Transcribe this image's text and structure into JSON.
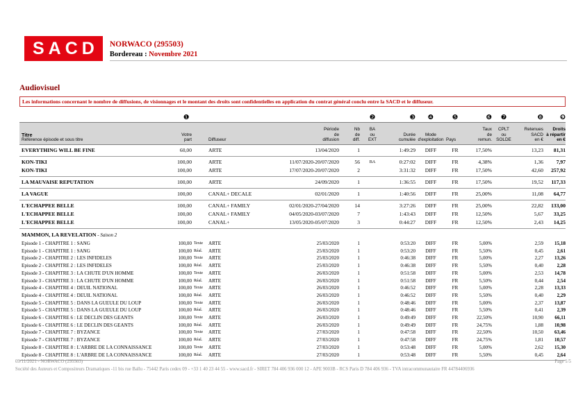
{
  "header": {
    "logo_text": "SACD",
    "client": "NORWACO (295503)",
    "bordereau_label": "Bordereau :",
    "bordereau_value": "Novembre 2021"
  },
  "section_title": "Audiovisuel",
  "notice": "Les informations concernant le nombre de diffusions, de visionnages et le montant des droits sont confidentielles en application du contrat général conclu entre la SACD et le diffuseur.",
  "footer": {
    "left": "09/11/2021 - NORWACO (295503)",
    "page": "Page 1/5",
    "company": "Société des Auteurs et Compositeurs Dramatiques -11 bis rue Ballu - 75442 Paris cedex 09 - +33 1 40 23 44 55 - www.sacd.fr - SIRET 784 406 936 000 12 - APE 9003B - RCS Paris D 784 406 936 - TVA intracommunautaire FR 44784406936"
  },
  "colors": {
    "brand_red": "#e30613",
    "title_red": "#c00000",
    "dark_red": "#8b0000",
    "header_band": "#d6d6d6",
    "line_gray": "#9a9a9a",
    "footer_gray": "#8a8a8a"
  },
  "table": {
    "badges": {
      "partrole": "❶",
      "ba": "❷",
      "duree": "❸",
      "mode": "❹",
      "pays": "❺",
      "taux": "❻",
      "cplt": "❼",
      "retenues": "❽",
      "droits": "❾"
    },
    "badge_order": [
      "titre",
      "partrole",
      "diffuseur",
      "periode",
      "nb",
      "ba",
      "duree",
      "mode",
      "pays",
      "taux",
      "cplt",
      "retenues",
      "droits"
    ],
    "header": {
      "titre_line1": "Titre",
      "titre_line2": "Référence épisode et sous titre",
      "cols": [
        {
          "key": "part",
          "label": "Votre\npart"
        },
        {
          "key": "role",
          "label": ""
        },
        {
          "key": "diffuseur",
          "label": "Diffuseur"
        },
        {
          "key": "periode",
          "label": "Période\nde\ndiffusion"
        },
        {
          "key": "nb",
          "label": "Nb\nde\ndiff."
        },
        {
          "key": "ba",
          "label": "BA\nou\nEXT"
        },
        {
          "key": "duree",
          "label": "Durée\ncumulée"
        },
        {
          "key": "mode",
          "label": "Mode\nd'exploitation"
        },
        {
          "key": "pays",
          "label": "Pays"
        },
        {
          "key": "taux",
          "label": "Taux\nde\nremun."
        },
        {
          "key": "cplt",
          "label": "CPLT\nou\nSOLDE"
        },
        {
          "key": "retenues",
          "label": "Retenues\nSACD\nen €"
        },
        {
          "key": "droits",
          "label": "Droits\nà répartir\nen €"
        }
      ]
    },
    "row_fields": [
      "titre",
      "part",
      "role",
      "diffuseur",
      "periode",
      "nb",
      "ba",
      "duree",
      "mode",
      "pays",
      "taux",
      "cplt",
      "retenues",
      "droits"
    ],
    "groups": [
      {
        "header": null,
        "rows": [
          [
            "EVERYTHING WILL BE FINE",
            "60,00",
            "",
            "ARTE",
            "13/04/2020",
            "1",
            "",
            "1:49:29",
            "DIFF",
            "FR",
            "17,50%",
            "",
            "13,23",
            "81,31"
          ]
        ]
      },
      {
        "header": null,
        "rows": [
          [
            "KON-TIKI",
            "100,00",
            "",
            "ARTE",
            "11/07/2020-20/07/2020",
            "56",
            "BA",
            "0:27:02",
            "DIFF",
            "FR",
            "4,38%",
            "",
            "1,36",
            "7,97"
          ],
          [
            "KON-TIKI",
            "100,00",
            "",
            "ARTE",
            "17/07/2020-20/07/2020",
            "2",
            "",
            "3:31:32",
            "DIFF",
            "FR",
            "17,50%",
            "",
            "42,60",
            "257,92"
          ]
        ]
      },
      {
        "header": null,
        "rows": [
          [
            "LA MAUVAISE REPUTATION",
            "100,00",
            "",
            "ARTE",
            "24/09/2020",
            "1",
            "",
            "1:36:55",
            "DIFF",
            "FR",
            "17,50%",
            "",
            "19,52",
            "117,33"
          ]
        ]
      },
      {
        "header": null,
        "rows": [
          [
            "LA VAGUE",
            "100,00",
            "",
            "CANAL+ DECALE",
            "02/01/2020",
            "1",
            "",
            "1:40:56",
            "DIFF",
            "FR",
            "25,00%",
            "",
            "11,08",
            "64,77"
          ]
        ]
      },
      {
        "header": null,
        "rows": [
          [
            "L'ECHAPPEE BELLE",
            "100,00",
            "",
            "CANAL+ FAMILY",
            "02/01/2020-27/04/2020",
            "14",
            "",
            "3:27:26",
            "DIFF",
            "FR",
            "25,00%",
            "",
            "22,82",
            "133,00"
          ],
          [
            "L'ECHAPPEE BELLE",
            "100,00",
            "",
            "CANAL+ FAMILY",
            "04/05/2020-03/07/2020",
            "7",
            "",
            "1:43:43",
            "DIFF",
            "FR",
            "12,50%",
            "",
            "5,67",
            "33,25"
          ],
          [
            "L'ECHAPPEE BELLE",
            "100,00",
            "",
            "CANAL+",
            "13/05/2020-05/07/2020",
            "3",
            "",
            "0:44:27",
            "DIFF",
            "FR",
            "12,50%",
            "",
            "2,43",
            "14,25"
          ]
        ]
      },
      {
        "header": {
          "title": "MAMMON, LA REVELATION",
          "suffix": " - Saison 2"
        },
        "rows": [
          [
            "Episode 1 - CHAPITRE 1 : SANG",
            "100,00",
            "Texte",
            "ARTE",
            "25/03/2020",
            "1",
            "",
            "0:53:20",
            "DIFF",
            "FR",
            "5,00%",
            "",
            "2,59",
            "15,18"
          ],
          [
            "Episode 1 - CHAPITRE 1 : SANG",
            "100,00",
            "Réal.",
            "ARTE",
            "25/03/2020",
            "1",
            "",
            "0:53:20",
            "DIFF",
            "FR",
            "5,50%",
            "",
            "0,45",
            "2,61"
          ],
          [
            "Episode 2 - CHAPITRE 2 : LES INFIDELES",
            "100,00",
            "Texte",
            "ARTE",
            "25/03/2020",
            "1",
            "",
            "0:46:38",
            "DIFF",
            "FR",
            "5,00%",
            "",
            "2,27",
            "13,26"
          ],
          [
            "Episode 2 - CHAPITRE 2 : LES INFIDELES",
            "100,00",
            "Réal.",
            "ARTE",
            "25/03/2020",
            "1",
            "",
            "0:46:38",
            "DIFF",
            "FR",
            "5,50%",
            "",
            "0,40",
            "2,28"
          ],
          [
            "Episode 3 - CHAPITRE 3 : LA CHUTE D'UN HOMME",
            "100,00",
            "Texte",
            "ARTE",
            "26/03/2020",
            "1",
            "",
            "0:51:58",
            "DIFF",
            "FR",
            "5,00%",
            "",
            "2,53",
            "14,78"
          ],
          [
            "Episode 3 - CHAPITRE 3 : LA CHUTE D'UN HOMME",
            "100,00",
            "Réal.",
            "ARTE",
            "26/03/2020",
            "1",
            "",
            "0:51:58",
            "DIFF",
            "FR",
            "5,50%",
            "",
            "0,44",
            "2,54"
          ],
          [
            "Episode 4 - CHAPITRE 4 : DEUIL NATIONAL",
            "100,00",
            "Texte",
            "ARTE",
            "26/03/2020",
            "1",
            "",
            "0:46:52",
            "DIFF",
            "FR",
            "5,00%",
            "",
            "2,28",
            "13,33"
          ],
          [
            "Episode 4 - CHAPITRE 4 : DEUIL NATIONAL",
            "100,00",
            "Réal.",
            "ARTE",
            "26/03/2020",
            "1",
            "",
            "0:46:52",
            "DIFF",
            "FR",
            "5,50%",
            "",
            "0,40",
            "2,29"
          ],
          [
            "Episode 5 - CHAPITRE 5 : DANS LA GUEULE DU LOUP",
            "100,00",
            "Texte",
            "ARTE",
            "26/03/2020",
            "1",
            "",
            "0:48:46",
            "DIFF",
            "FR",
            "5,00%",
            "",
            "2,37",
            "13,87"
          ],
          [
            "Episode 5 - CHAPITRE 5 : DANS LA GUEULE DU LOUP",
            "100,00",
            "Réal.",
            "ARTE",
            "26/03/2020",
            "1",
            "",
            "0:48:46",
            "DIFF",
            "FR",
            "5,50%",
            "",
            "0,41",
            "2,39"
          ],
          [
            "Episode 6 - CHAPITRE 6 : LE DECLIN DES GEANTS",
            "100,00",
            "Texte",
            "ARTE",
            "26/03/2020",
            "1",
            "",
            "0:49:49",
            "DIFF",
            "FR",
            "22,50%",
            "",
            "10,90",
            "66,11"
          ],
          [
            "Episode 6 - CHAPITRE 6 : LE DECLIN DES GEANTS",
            "100,00",
            "Réal.",
            "ARTE",
            "26/03/2020",
            "1",
            "",
            "0:49:49",
            "DIFF",
            "FR",
            "24,75%",
            "",
            "1,88",
            "10,98"
          ],
          [
            "Episode 7 - CHAPITRE 7 : BYZANCE",
            "100,00",
            "Texte",
            "ARTE",
            "27/03/2020",
            "1",
            "",
            "0:47:58",
            "DIFF",
            "FR",
            "22,50%",
            "",
            "10,50",
            "63,46"
          ],
          [
            "Episode 7 - CHAPITRE 7 : BYZANCE",
            "100,00",
            "Réal.",
            "ARTE",
            "27/03/2020",
            "1",
            "",
            "0:47:58",
            "DIFF",
            "FR",
            "24,75%",
            "",
            "1,81",
            "10,57"
          ],
          [
            "Episode 8 - CHAPITRE 8 : L'ARBRE DE LA CONNAISSANCE",
            "100,00",
            "Texte",
            "ARTE",
            "27/03/2020",
            "1",
            "",
            "0:53:48",
            "DIFF",
            "FR",
            "5,00%",
            "",
            "2,62",
            "15,30"
          ],
          [
            "Episode 8 - CHAPITRE 8 : L'ARBRE DE LA CONNAISSANCE",
            "100,00",
            "Réal.",
            "ARTE",
            "27/03/2020",
            "1",
            "",
            "0:53:48",
            "DIFF",
            "FR",
            "5,50%",
            "",
            "0,45",
            "2,64"
          ]
        ]
      }
    ]
  }
}
